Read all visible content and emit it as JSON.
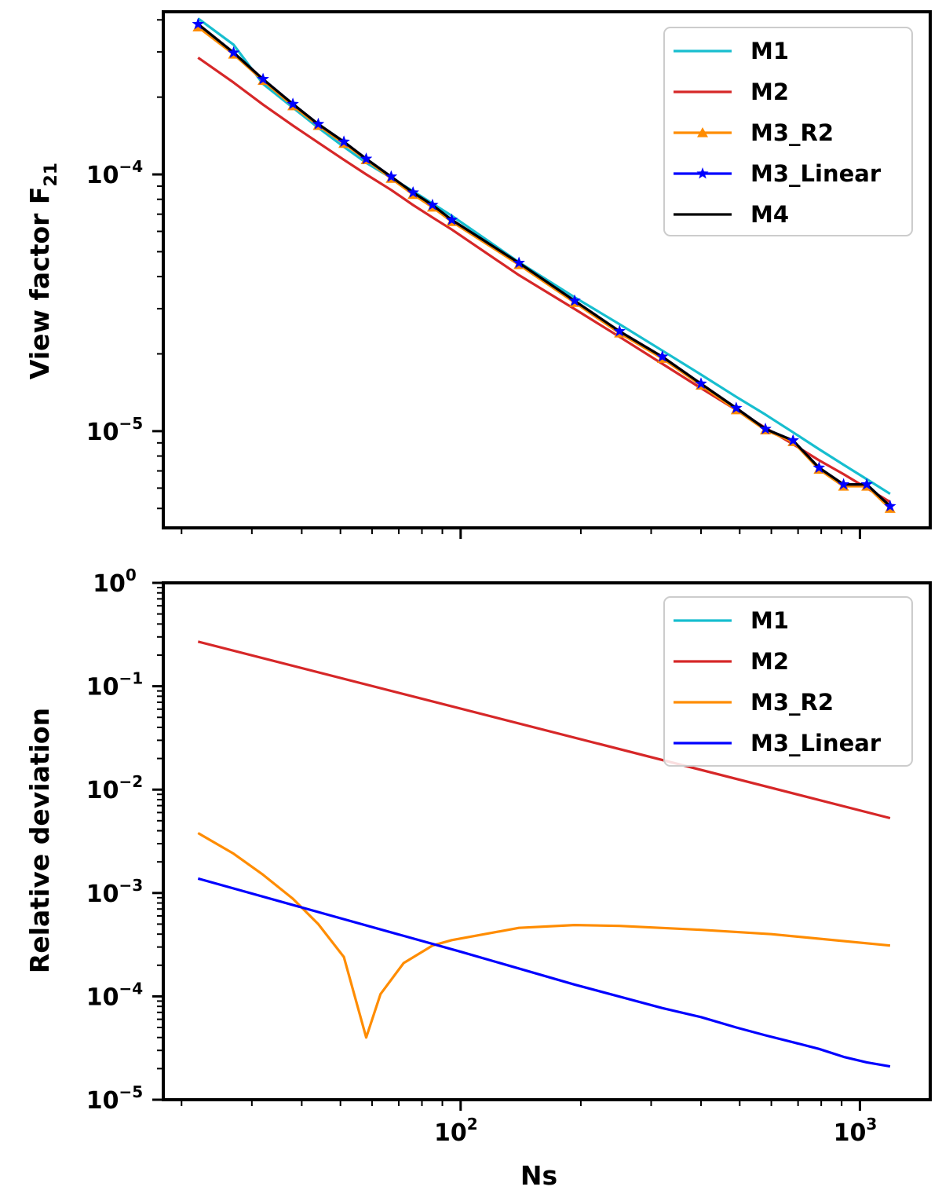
{
  "chart_data": [
    {
      "type": "line",
      "scale": {
        "x": "log",
        "y": "log"
      },
      "xlim": [
        18,
        1500
      ],
      "ylim": [
        4.2e-06,
        0.00043
      ],
      "ylabel": "View factor F",
      "ylabel_sub": "21",
      "xlabel": "",
      "yticks": [
        {
          "base": "10",
          "exp": "−4",
          "value": 0.0001
        },
        {
          "base": "10",
          "exp": "−5",
          "value": 1e-05
        }
      ],
      "xticks_unlabeled": [
        100,
        1000
      ],
      "legend": {
        "position": "top-right",
        "entries": [
          "M1",
          "M2",
          "M3_R2",
          "M3_Linear",
          "M4"
        ]
      },
      "x": [
        22,
        27,
        32,
        38,
        44,
        51,
        58,
        67,
        76,
        85,
        95,
        140,
        193,
        250,
        320,
        400,
        490,
        580,
        680,
        790,
        910,
        1040,
        1190
      ],
      "series": [
        {
          "name": "M1",
          "color": "#17becf",
          "values": [
            0.000405,
            0.00032,
            0.000225,
            0.000182,
            0.000152,
            0.000128,
            0.000111,
            9.7e-05,
            8.6e-05,
            7.7e-05,
            6.9e-05,
            4.55e-05,
            3.32e-05,
            2.61e-05,
            2.06e-05,
            1.66e-05,
            1.36e-05,
            1.16e-05,
            9.9e-06,
            8.5e-06,
            7.4e-06,
            6.5e-06,
            5.7e-06
          ],
          "marker": "none"
        },
        {
          "name": "M2",
          "color": "#d62728",
          "values": [
            0.000285,
            0.000228,
            0.000187,
            0.000155,
            0.000133,
            0.000114,
            0.0001,
            8.7e-05,
            7.6e-05,
            6.8e-05,
            6.1e-05,
            4.05e-05,
            2.99e-05,
            2.33e-05,
            1.83e-05,
            1.47e-05,
            1.21e-05,
            1.03e-05,
            8.9e-06,
            7.7e-06,
            6.8e-06,
            6e-06,
            5.3e-06
          ],
          "marker": "none"
        },
        {
          "name": "M3_R2",
          "color": "#ff8c00",
          "values": [
            0.000375,
            0.000294,
            0.000232,
            0.000185,
            0.000155,
            0.000132,
            0.000114,
            9.65e-05,
            8.35e-05,
            7.45e-05,
            6.55e-05,
            4.45e-05,
            3.17e-05,
            2.41e-05,
            1.92e-05,
            1.51e-05,
            1.21e-05,
            1.01e-05,
            9.1e-06,
            7.1e-06,
            6.1e-06,
            6.1e-06,
            5e-06
          ],
          "marker": "triangle"
        },
        {
          "name": "M3_Linear",
          "color": "#0000ff",
          "values": [
            0.000385,
            0.000298,
            0.000235,
            0.000188,
            0.000157,
            0.000134,
            0.000115,
            9.8e-05,
            8.5e-05,
            7.6e-05,
            6.65e-05,
            4.52e-05,
            3.22e-05,
            2.45e-05,
            1.95e-05,
            1.53e-05,
            1.23e-05,
            1.02e-05,
            9.2e-06,
            7.2e-06,
            6.2e-06,
            6.2e-06,
            5.1e-06
          ],
          "marker": "star"
        },
        {
          "name": "M4",
          "color": "#000000",
          "values": [
            0.000385,
            0.000298,
            0.000235,
            0.000188,
            0.000157,
            0.000134,
            0.000115,
            9.8e-05,
            8.5e-05,
            7.6e-05,
            6.65e-05,
            4.52e-05,
            3.22e-05,
            2.45e-05,
            1.95e-05,
            1.53e-05,
            1.23e-05,
            1.02e-05,
            9.2e-06,
            7.2e-06,
            6.2e-06,
            6.2e-06,
            5.1e-06
          ],
          "marker": "none"
        }
      ]
    },
    {
      "type": "line",
      "scale": {
        "x": "log",
        "y": "log"
      },
      "xlim": [
        18,
        1500
      ],
      "ylim": [
        1e-05,
        1
      ],
      "ylabel": "Relative deviation",
      "xlabel": "Ns",
      "yticks": [
        {
          "base": "10",
          "exp": "0",
          "value": 1
        },
        {
          "base": "10",
          "exp": "−1",
          "value": 0.1
        },
        {
          "base": "10",
          "exp": "−2",
          "value": 0.01
        },
        {
          "base": "10",
          "exp": "−3",
          "value": 0.001
        },
        {
          "base": "10",
          "exp": "−4",
          "value": 0.0001
        },
        {
          "base": "10",
          "exp": "−5",
          "value": 1e-05
        }
      ],
      "xticks": [
        {
          "base": "10",
          "exp": "2",
          "value": 100
        },
        {
          "base": "10",
          "exp": "3",
          "value": 1000
        }
      ],
      "legend": {
        "position": "top-right",
        "entries": [
          "M1",
          "M2",
          "M3_R2",
          "M3_Linear"
        ]
      },
      "series": [
        {
          "name": "M1",
          "color": "#17becf",
          "x": [],
          "values": []
        },
        {
          "name": "M2",
          "color": "#d62728",
          "x": [
            22,
            1190
          ],
          "values": [
            0.27,
            0.0053
          ]
        },
        {
          "name": "M3_R2",
          "color": "#ff8c00",
          "x": [
            22,
            27,
            32,
            38,
            44,
            51,
            58,
            63,
            72,
            85,
            95,
            140,
            193,
            250,
            400,
            600,
            1190
          ],
          "values": [
            0.0038,
            0.0024,
            0.0015,
            0.00088,
            0.0005,
            0.00024,
            4e-05,
            0.000105,
            0.00021,
            0.00031,
            0.00035,
            0.00046,
            0.00049,
            0.00048,
            0.00044,
            0.0004,
            0.00031
          ]
        },
        {
          "name": "M3_Linear",
          "color": "#0000ff",
          "x": [
            22,
            100,
            193,
            320,
            400,
            490,
            580,
            680,
            790,
            910,
            1040,
            1190
          ],
          "values": [
            0.00138,
            0.00027,
            0.00013,
            7.7e-05,
            6.3e-05,
            5e-05,
            4.2e-05,
            3.6e-05,
            3.1e-05,
            2.6e-05,
            2.3e-05,
            2.1e-05
          ]
        }
      ]
    }
  ]
}
